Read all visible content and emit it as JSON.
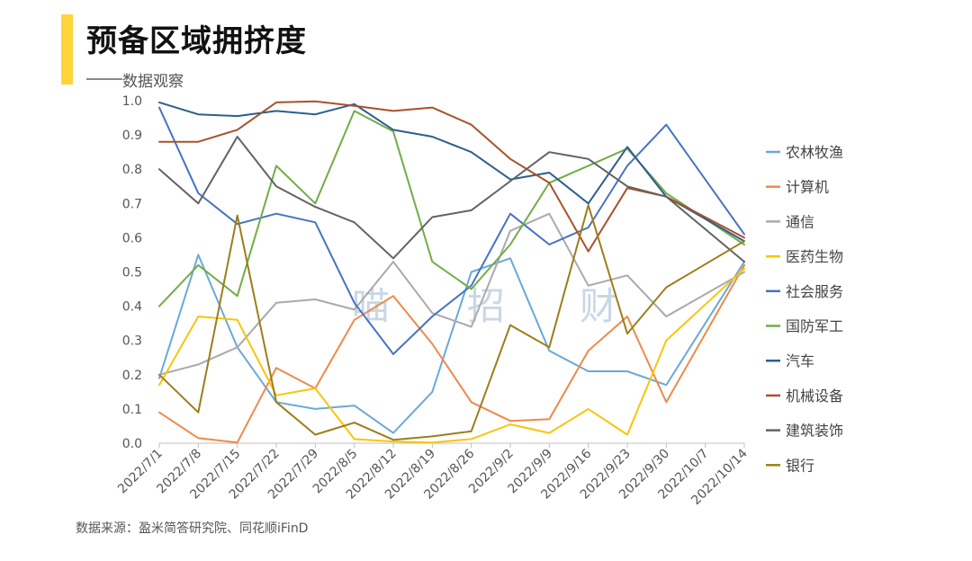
{
  "header": {
    "title": "预备区域拥挤度",
    "subtitle": "数据观察"
  },
  "footer": {
    "source": "数据来源：盈米简答研究院、同花顺iFinD"
  },
  "watermark": [
    "喵",
    "招",
    "财"
  ],
  "colors": {
    "accent": "#FFD43B"
  },
  "chart_data": {
    "type": "line",
    "categories": [
      "2022/7/1",
      "2022/7/8",
      "2022/7/15",
      "2022/7/22",
      "2022/7/29",
      "2022/8/5",
      "2022/8/12",
      "2022/8/19",
      "2022/8/26",
      "2022/9/2",
      "2022/9/9",
      "2022/9/16",
      "2022/9/23",
      "2022/9/30",
      "2022/10/7",
      "2022/10/14"
    ],
    "ylim": [
      0,
      1.0
    ],
    "yticks": [
      "0.0",
      "0.1",
      "0.2",
      "0.3",
      "0.4",
      "0.5",
      "0.6",
      "0.7",
      "0.8",
      "0.9",
      "1.0"
    ],
    "grid": false,
    "legend": "right",
    "series": [
      {
        "name": "农林牧渔",
        "color": "#6AA9D8",
        "values": [
          0.19,
          0.55,
          0.28,
          0.12,
          0.1,
          0.11,
          0.03,
          0.15,
          0.5,
          0.54,
          0.27,
          0.21,
          0.21,
          0.17,
          null,
          0.53
        ]
      },
      {
        "name": "计算机",
        "color": "#EF8A4A",
        "values": [
          0.09,
          0.015,
          0.002,
          0.22,
          0.16,
          0.36,
          0.43,
          0.29,
          0.12,
          0.065,
          0.07,
          0.27,
          0.37,
          0.12,
          null,
          0.52
        ]
      },
      {
        "name": "通信",
        "color": "#AAAAAA",
        "values": [
          0.2,
          0.23,
          0.28,
          0.41,
          0.42,
          0.39,
          0.53,
          0.38,
          0.34,
          0.62,
          0.67,
          0.46,
          0.49,
          0.37,
          null,
          0.5
        ]
      },
      {
        "name": "医药生物",
        "color": "#F9C50A",
        "values": [
          0.17,
          0.37,
          0.36,
          0.14,
          0.16,
          0.012,
          0.005,
          0.002,
          0.012,
          0.055,
          0.03,
          0.1,
          0.025,
          0.3,
          null,
          0.51
        ]
      },
      {
        "name": "社会服务",
        "color": "#4672C4",
        "values": [
          0.98,
          0.73,
          0.64,
          0.67,
          0.645,
          0.41,
          0.26,
          0.37,
          0.46,
          0.67,
          0.58,
          0.63,
          0.81,
          0.93,
          null,
          0.61
        ]
      },
      {
        "name": "国防军工",
        "color": "#70AD47",
        "values": [
          0.4,
          0.52,
          0.43,
          0.81,
          0.7,
          0.97,
          0.91,
          0.53,
          0.45,
          0.58,
          0.76,
          0.81,
          0.86,
          0.73,
          null,
          0.58
        ]
      },
      {
        "name": "汽车",
        "color": "#2C5F8E",
        "values": [
          0.995,
          0.96,
          0.955,
          0.97,
          0.96,
          0.99,
          0.915,
          0.895,
          0.85,
          0.77,
          0.79,
          0.7,
          0.865,
          0.72,
          null,
          0.59
        ]
      },
      {
        "name": "机械设备",
        "color": "#A8522A",
        "values": [
          0.88,
          0.88,
          0.915,
          0.995,
          0.998,
          0.985,
          0.97,
          0.98,
          0.93,
          0.83,
          0.76,
          0.56,
          0.745,
          0.72,
          null,
          0.6
        ]
      },
      {
        "name": "建筑装饰",
        "color": "#636363",
        "values": [
          0.8,
          0.7,
          0.895,
          0.75,
          0.69,
          0.645,
          0.54,
          0.66,
          0.68,
          0.765,
          0.85,
          0.83,
          0.75,
          0.72,
          null,
          0.53
        ]
      },
      {
        "name": "银行",
        "color": "#9C7E1B",
        "values": [
          0.2,
          0.09,
          0.665,
          0.12,
          0.025,
          0.06,
          0.01,
          0.02,
          0.035,
          0.345,
          0.28,
          0.695,
          0.32,
          0.455,
          null,
          0.59
        ]
      }
    ]
  }
}
